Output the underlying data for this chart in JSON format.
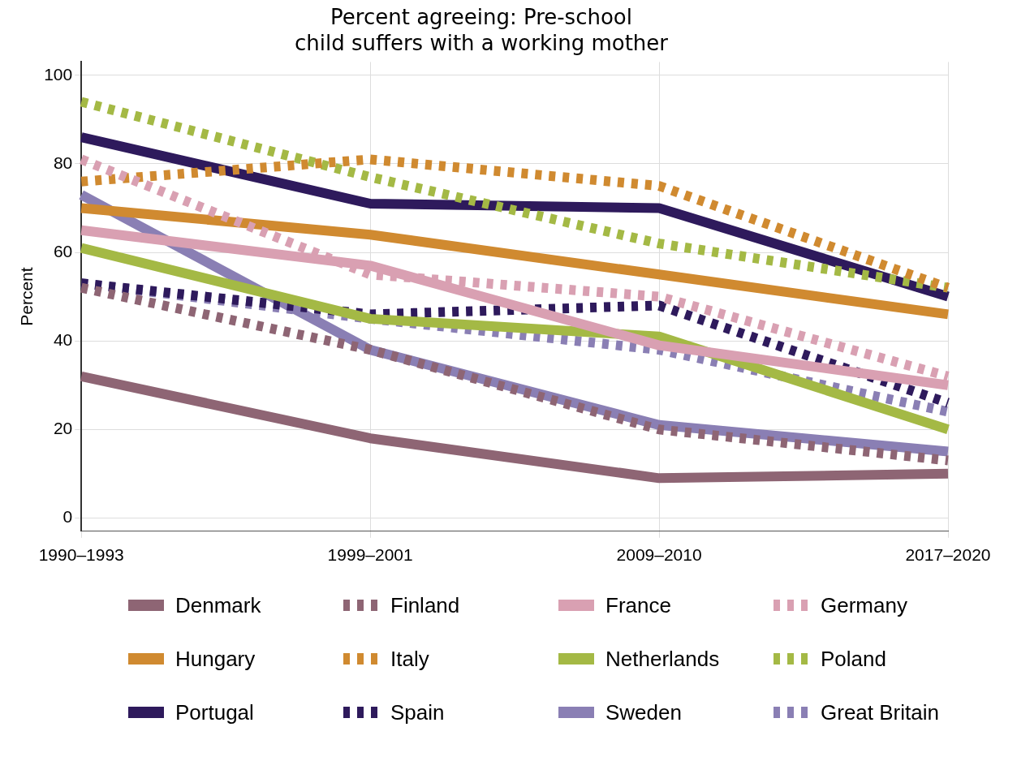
{
  "chart_data": {
    "type": "line",
    "title": [
      "Percent agreeing: Pre-school",
      "child suffers with a working mother"
    ],
    "ylabel": "Percent",
    "categories": [
      "1990–1993",
      "1999–2001",
      "2009–2010",
      "2017–2020"
    ],
    "ylim": [
      -3,
      103
    ],
    "yticks": [
      0,
      20,
      40,
      60,
      80,
      100
    ],
    "grid": true,
    "legend": "bottom",
    "marker": "none",
    "series": [
      {
        "name": "Denmark",
        "color": "#8e6574",
        "line_style": "solid",
        "values": [
          32,
          18,
          9,
          10
        ]
      },
      {
        "name": "Finland",
        "color": "#8e6574",
        "line_style": "dotted",
        "values": [
          52,
          38,
          20,
          13
        ]
      },
      {
        "name": "France",
        "color": "#d9a0b2",
        "line_style": "solid",
        "values": [
          65,
          57,
          39,
          30
        ]
      },
      {
        "name": "Germany",
        "color": "#d9a0b2",
        "line_style": "dotted",
        "values": [
          81,
          55,
          50,
          32
        ]
      },
      {
        "name": "Hungary",
        "color": "#d08a30",
        "line_style": "solid",
        "values": [
          70,
          64,
          55,
          46
        ]
      },
      {
        "name": "Italy",
        "color": "#d08a30",
        "line_style": "dotted",
        "values": [
          76,
          81,
          75,
          52
        ]
      },
      {
        "name": "Netherlands",
        "color": "#a4b945",
        "line_style": "solid",
        "values": [
          61,
          45,
          41,
          20
        ]
      },
      {
        "name": "Poland",
        "color": "#a4b945",
        "line_style": "dotted",
        "values": [
          94,
          77,
          62,
          52
        ]
      },
      {
        "name": "Portugal",
        "color": "#2e1a5c",
        "line_style": "solid",
        "values": [
          86,
          71,
          70,
          50
        ]
      },
      {
        "name": "Spain",
        "color": "#2e1a5c",
        "line_style": "dotted",
        "values": [
          53,
          46,
          48,
          26
        ]
      },
      {
        "name": "Sweden",
        "color": "#8a7fb4",
        "line_style": "solid",
        "values": [
          73,
          38,
          21,
          15
        ]
      },
      {
        "name": "Great Britain",
        "color": "#8a7fb4",
        "line_style": "dotted",
        "values": [
          53,
          45,
          38,
          24
        ]
      }
    ]
  }
}
